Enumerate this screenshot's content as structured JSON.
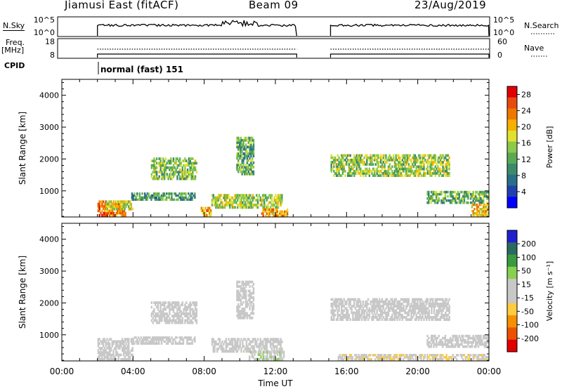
{
  "header": {
    "station": "Jiamusi East (fitACF)",
    "beam": "Beam 09",
    "date": "23/Aug/2019"
  },
  "strip": {
    "nsky_label": "N.Sky",
    "nsky_ticks": [
      "10^5",
      "10^0"
    ],
    "nsearch_label": "N.Search",
    "nsearch_ticks": [
      "10^5",
      "10^0"
    ],
    "freq_label": "Freq.",
    "freq_unit": "[MHz]",
    "freq_ticks": [
      "18",
      "8"
    ],
    "nave_label": "Nave",
    "nave_ticks": [
      "60",
      "0"
    ],
    "cpid_label": "CPID",
    "cpid_text": "normal (fast) 151"
  },
  "colors": {
    "axis": "#000000",
    "power_scale": [
      "#0000ff",
      "#2040b0",
      "#2a6e88",
      "#3c8a6c",
      "#5aaa55",
      "#8cc84a",
      "#e0e030",
      "#f5b000",
      "#ef7800",
      "#e84a10",
      "#e00000"
    ],
    "velocity_scale": [
      "#2020d0",
      "#2a6a60",
      "#3a9a40",
      "#88d050",
      "#c8c8c8",
      "#c8c8c8",
      "#ffcc40",
      "#f59000",
      "#ef5000",
      "#e00000"
    ]
  },
  "chart_data": [
    {
      "type": "heatmap",
      "panel": "power",
      "ylabel": "Slant Range [km]",
      "yticks": [
        "1000",
        "2000",
        "3000",
        "4000"
      ],
      "ylim": [
        180,
        4500
      ],
      "x_range_hours": [
        0,
        24
      ],
      "colorbar_label": "Power [dB]",
      "colorbar_ticks": [
        "4",
        "8",
        "12",
        "16",
        "20",
        "24",
        "28"
      ],
      "colorbar_range": [
        0,
        30
      ],
      "data_gaps_hours": [
        [
          0,
          2
        ],
        [
          13.2,
          15.1
        ]
      ],
      "echo_bands": [
        {
          "t0": 2.0,
          "t1": 3.6,
          "r0": 200,
          "r1": 700,
          "level": 24
        },
        {
          "t0": 2.4,
          "t1": 4.0,
          "r0": 400,
          "r1": 700,
          "level": 18
        },
        {
          "t0": 3.9,
          "t1": 7.5,
          "r0": 700,
          "r1": 950,
          "level": 10
        },
        {
          "t0": 5.0,
          "t1": 7.6,
          "r0": 1350,
          "r1": 2050,
          "level": 14
        },
        {
          "t0": 7.8,
          "t1": 8.4,
          "r0": 200,
          "r1": 500,
          "level": 22
        },
        {
          "t0": 8.4,
          "t1": 12.4,
          "r0": 450,
          "r1": 900,
          "level": 16
        },
        {
          "t0": 9.8,
          "t1": 10.8,
          "r0": 1500,
          "r1": 2700,
          "level": 12
        },
        {
          "t0": 11.2,
          "t1": 12.7,
          "r0": 200,
          "r1": 450,
          "level": 22
        },
        {
          "t0": 15.1,
          "t1": 21.8,
          "r0": 1450,
          "r1": 2150,
          "level": 15
        },
        {
          "t0": 20.5,
          "t1": 24.0,
          "r0": 600,
          "r1": 1000,
          "level": 12
        },
        {
          "t0": 23.0,
          "t1": 24.0,
          "r0": 200,
          "r1": 600,
          "level": 20
        }
      ]
    },
    {
      "type": "heatmap",
      "panel": "velocity",
      "ylabel": "Slant Range [km]",
      "yticks": [
        "1000",
        "2000",
        "3000",
        "4000"
      ],
      "ylim": [
        180,
        4500
      ],
      "x_range_hours": [
        0,
        24
      ],
      "xticks": [
        "00:00",
        "04:00",
        "08:00",
        "12:00",
        "16:00",
        "20:00",
        "00:00"
      ],
      "xlabel": "Time UT",
      "colorbar_label": "Velocity [m s⁻¹]",
      "colorbar_ticks": [
        "200",
        "100",
        "50",
        "15",
        "-15",
        "-50",
        "-100",
        "-200"
      ],
      "colorbar_range": [
        -250,
        250
      ],
      "data_gaps_hours": [
        [
          0,
          2
        ],
        [
          13.2,
          15.1
        ]
      ],
      "echo_bands": [
        {
          "t0": 2.0,
          "t1": 4.0,
          "r0": 200,
          "r1": 900,
          "v": 0
        },
        {
          "t0": 3.9,
          "t1": 7.5,
          "r0": 700,
          "r1": 950,
          "v": 0
        },
        {
          "t0": 5.0,
          "t1": 7.6,
          "r0": 1350,
          "r1": 2050,
          "v": -10
        },
        {
          "t0": 8.4,
          "t1": 12.4,
          "r0": 450,
          "r1": 900,
          "v": 5
        },
        {
          "t0": 10.5,
          "t1": 12.5,
          "r0": 200,
          "r1": 500,
          "v": 40
        },
        {
          "t0": 9.8,
          "t1": 10.8,
          "r0": 1500,
          "r1": 2700,
          "v": 10
        },
        {
          "t0": 15.1,
          "t1": 21.8,
          "r0": 1450,
          "r1": 2150,
          "v": 0
        },
        {
          "t0": 15.5,
          "t1": 24.0,
          "r0": 200,
          "r1": 400,
          "v": -40
        },
        {
          "t0": 20.5,
          "t1": 24.0,
          "r0": 600,
          "r1": 1000,
          "v": 0
        }
      ]
    }
  ]
}
